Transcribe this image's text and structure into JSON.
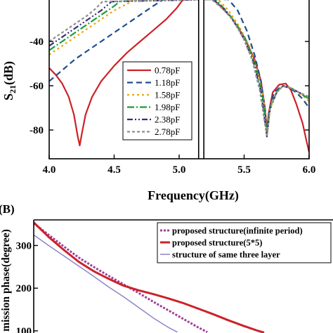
{
  "panel_b_tag": "(B)",
  "chart_data": [
    {
      "type": "line",
      "xlabel": "Frequency(GHz)",
      "ylabel": "S21(dB)",
      "ylabel_main": "S",
      "ylabel_sub": "21",
      "ylabel_unit": "(dB)",
      "xlim": [
        4.0,
        6.0
      ],
      "ylim": [
        -93,
        -20
      ],
      "x_ticks": [
        4.0,
        4.5,
        5.0,
        5.5,
        6.0
      ],
      "x_tick_labels": [
        "4.0",
        "4.5",
        "5.0",
        "5.5",
        "6.0"
      ],
      "y_ticks": [
        -40,
        -60,
        -80
      ],
      "y_tick_labels": [
        "-40",
        "-60",
        "-80"
      ],
      "axis_break": [
        5.15,
        5.19
      ],
      "legend_position": "lower-center",
      "series": [
        {
          "name": "0.78pF",
          "color": "#cc2229",
          "dash": "",
          "points": [
            [
              4.0,
              -52
            ],
            [
              4.05,
              -55
            ],
            [
              4.1,
              -59
            ],
            [
              4.15,
              -65
            ],
            [
              4.19,
              -73
            ],
            [
              4.22,
              -83
            ],
            [
              4.235,
              -87
            ],
            [
              4.25,
              -82
            ],
            [
              4.28,
              -73
            ],
            [
              4.33,
              -65
            ],
            [
              4.4,
              -58
            ],
            [
              4.5,
              -51
            ],
            [
              4.6,
              -45
            ],
            [
              4.7,
              -40
            ],
            [
              4.8,
              -35
            ],
            [
              4.9,
              -30
            ],
            [
              4.98,
              -25
            ],
            [
              5.03,
              -21
            ],
            [
              5.25,
              -20
            ],
            [
              5.3,
              -23
            ],
            [
              5.4,
              -29
            ],
            [
              5.5,
              -38
            ],
            [
              5.58,
              -48
            ],
            [
              5.63,
              -58
            ],
            [
              5.66,
              -70
            ],
            [
              5.675,
              -80
            ],
            [
              5.69,
              -72
            ],
            [
              5.72,
              -63
            ],
            [
              5.77,
              -59.5
            ],
            [
              5.82,
              -59
            ],
            [
              5.86,
              -62
            ],
            [
              5.9,
              -68
            ],
            [
              5.95,
              -77
            ],
            [
              5.98,
              -85
            ],
            [
              6.0,
              -90
            ]
          ]
        },
        {
          "name": "1.18pF",
          "color": "#1f4e8c",
          "dash": "8,5",
          "points": [
            [
              4.0,
              -58
            ],
            [
              4.1,
              -53
            ],
            [
              4.2,
              -48
            ],
            [
              4.3,
              -44
            ],
            [
              4.4,
              -40
            ],
            [
              4.5,
              -36
            ],
            [
              4.6,
              -32
            ],
            [
              4.7,
              -28
            ],
            [
              4.8,
              -24
            ],
            [
              4.88,
              -21
            ],
            [
              5.38,
              -21
            ],
            [
              5.45,
              -26
            ],
            [
              5.52,
              -35
            ],
            [
              5.58,
              -46
            ],
            [
              5.63,
              -58
            ],
            [
              5.66,
              -70
            ],
            [
              5.675,
              -82
            ],
            [
              5.69,
              -72
            ],
            [
              5.73,
              -63
            ],
            [
              5.79,
              -60
            ],
            [
              5.85,
              -61
            ],
            [
              5.9,
              -63
            ],
            [
              5.95,
              -66
            ],
            [
              6.0,
              -70
            ]
          ]
        },
        {
          "name": "1.58pF",
          "color": "#e8a90e",
          "dash": "3,4",
          "points": [
            [
              4.0,
              -46
            ],
            [
              4.1,
              -42
            ],
            [
              4.2,
              -38
            ],
            [
              4.3,
              -34
            ],
            [
              4.4,
              -30
            ],
            [
              4.5,
              -26
            ],
            [
              4.6,
              -23
            ],
            [
              4.66,
              -21
            ],
            [
              5.3,
              -21
            ],
            [
              5.38,
              -26
            ],
            [
              5.46,
              -33
            ],
            [
              5.54,
              -42
            ],
            [
              5.6,
              -53
            ],
            [
              5.65,
              -66
            ],
            [
              5.675,
              -82
            ],
            [
              5.7,
              -71
            ],
            [
              5.75,
              -63
            ],
            [
              5.8,
              -60
            ],
            [
              5.86,
              -61
            ],
            [
              5.92,
              -63
            ],
            [
              6.0,
              -67
            ]
          ]
        },
        {
          "name": "1.98pF",
          "color": "#1a9e3a",
          "dash": "10,3,2,3",
          "points": [
            [
              4.0,
              -44
            ],
            [
              4.1,
              -40
            ],
            [
              4.2,
              -36
            ],
            [
              4.3,
              -32
            ],
            [
              4.4,
              -28
            ],
            [
              4.5,
              -24
            ],
            [
              4.56,
              -21
            ],
            [
              5.28,
              -21
            ],
            [
              5.36,
              -26
            ],
            [
              5.44,
              -32
            ],
            [
              5.52,
              -40
            ],
            [
              5.58,
              -50
            ],
            [
              5.64,
              -64
            ],
            [
              5.675,
              -82
            ],
            [
              5.7,
              -70
            ],
            [
              5.75,
              -63
            ],
            [
              5.8,
              -60
            ],
            [
              5.86,
              -61
            ],
            [
              5.92,
              -63
            ],
            [
              6.0,
              -66
            ]
          ]
        },
        {
          "name": "2.38pF",
          "color": "#3b2d7a",
          "dash": "8,3,2,3,2,3",
          "points": [
            [
              4.0,
              -42
            ],
            [
              4.1,
              -38
            ],
            [
              4.2,
              -34
            ],
            [
              4.3,
              -30
            ],
            [
              4.4,
              -26
            ],
            [
              4.48,
              -22
            ],
            [
              5.26,
              -21
            ],
            [
              5.34,
              -25
            ],
            [
              5.42,
              -31
            ],
            [
              5.5,
              -39
            ],
            [
              5.57,
              -49
            ],
            [
              5.63,
              -63
            ],
            [
              5.675,
              -83
            ],
            [
              5.7,
              -70
            ],
            [
              5.75,
              -63
            ],
            [
              5.8,
              -60
            ],
            [
              5.86,
              -61
            ],
            [
              5.92,
              -63
            ],
            [
              6.0,
              -65
            ]
          ]
        },
        {
          "name": "2.78pF",
          "color": "#8f8f8f",
          "dash": "4,3",
          "points": [
            [
              4.0,
              -40
            ],
            [
              4.1,
              -36
            ],
            [
              4.2,
              -32
            ],
            [
              4.3,
              -28
            ],
            [
              4.36,
              -25
            ],
            [
              4.41,
              -22
            ],
            [
              5.25,
              -21
            ],
            [
              5.33,
              -25
            ],
            [
              5.41,
              -30
            ],
            [
              5.49,
              -38
            ],
            [
              5.56,
              -48
            ],
            [
              5.62,
              -62
            ],
            [
              5.675,
              -83
            ],
            [
              5.7,
              -70
            ],
            [
              5.75,
              -63
            ],
            [
              5.8,
              -60
            ],
            [
              5.86,
              -61
            ],
            [
              5.92,
              -63
            ],
            [
              6.0,
              -65
            ]
          ]
        }
      ]
    },
    {
      "type": "line",
      "ylabel": "mission phase(degree)",
      "xlim": [
        0,
        100
      ],
      "ylim": [
        95,
        360
      ],
      "y_ticks": [
        300,
        200,
        100
      ],
      "y_tick_labels": [
        "300",
        "200",
        "100"
      ],
      "legend_position": "top-right",
      "series": [
        {
          "name": "proposed structure(infinite period)",
          "color": "#a0409c",
          "dash": "3,2",
          "width": 3,
          "points": [
            [
              0,
              352
            ],
            [
              5,
              325
            ],
            [
              10,
              298
            ],
            [
              15,
              272
            ],
            [
              20,
              250
            ],
            [
              25,
              229
            ],
            [
              30,
              209
            ],
            [
              35,
              189
            ],
            [
              40,
              168
            ],
            [
              45,
              148
            ],
            [
              50,
              128
            ],
            [
              55,
              108
            ],
            [
              58,
              97
            ]
          ]
        },
        {
          "name": "proposed structure(5*5)",
          "color": "#cc2229",
          "dash": "",
          "width": 3,
          "points": [
            [
              0,
              354
            ],
            [
              5,
              320
            ],
            [
              10,
              290
            ],
            [
              15,
              262
            ],
            [
              20,
              240
            ],
            [
              25,
              222
            ],
            [
              30,
              206
            ],
            [
              35,
              195
            ],
            [
              40,
              186
            ],
            [
              45,
              176
            ],
            [
              50,
              165
            ],
            [
              55,
              152
            ],
            [
              60,
              139
            ],
            [
              65,
              125
            ],
            [
              70,
              112
            ],
            [
              75,
              100
            ],
            [
              77,
              96
            ]
          ]
        },
        {
          "name": "structure of same three layer",
          "color": "#8c86c8",
          "dash": "",
          "width": 1.5,
          "points": [
            [
              0,
              325
            ],
            [
              5,
              300
            ],
            [
              10,
              276
            ],
            [
              15,
              252
            ],
            [
              20,
              228
            ],
            [
              25,
              203
            ],
            [
              30,
              180
            ],
            [
              35,
              155
            ],
            [
              40,
              130
            ],
            [
              45,
              108
            ],
            [
              48,
              97
            ]
          ]
        }
      ]
    }
  ]
}
